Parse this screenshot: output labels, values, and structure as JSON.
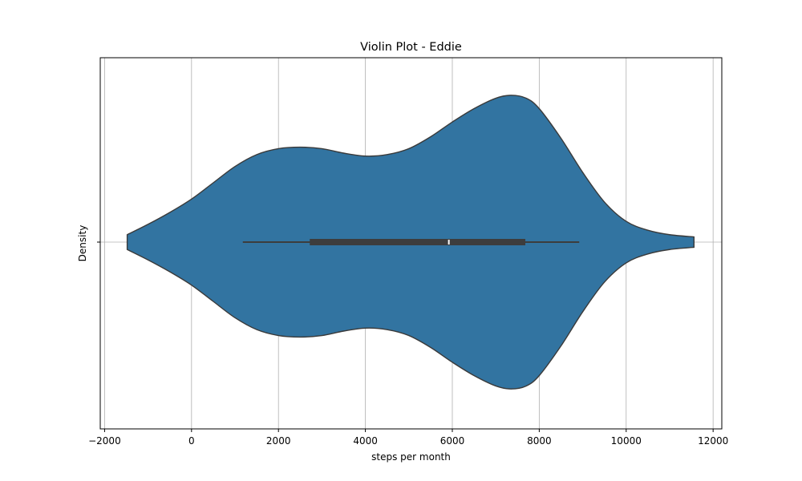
{
  "chart_data": {
    "type": "violin",
    "title": "Violin Plot - Eddie",
    "xlabel": "steps per month",
    "ylabel": "Density",
    "xlim": [
      -2100,
      12200
    ],
    "xticks": [
      -2000,
      0,
      2000,
      4000,
      6000,
      8000,
      10000,
      12000
    ],
    "xtick_labels": [
      "−2000",
      "0",
      "2000",
      "4000",
      "6000",
      "8000",
      "10000",
      "12000"
    ],
    "grid": true,
    "color": "#3274a1",
    "edge_color": "#3a3a3a",
    "box_color": "#3d3d3d",
    "density_profile": {
      "x": [
        -1480,
        -1000,
        -500,
        0,
        500,
        1000,
        1500,
        2000,
        2500,
        3000,
        3500,
        4000,
        4500,
        5000,
        5500,
        6000,
        6500,
        7000,
        7350,
        7700,
        8000,
        8500,
        9000,
        9500,
        10000,
        10500,
        11000,
        11560
      ],
      "density": [
        0.05,
        0.12,
        0.2,
        0.29,
        0.4,
        0.51,
        0.59,
        0.63,
        0.64,
        0.63,
        0.6,
        0.58,
        0.59,
        0.63,
        0.71,
        0.81,
        0.9,
        0.97,
        0.99,
        0.97,
        0.9,
        0.7,
        0.47,
        0.27,
        0.14,
        0.08,
        0.05,
        0.035
      ]
    },
    "box": {
      "whisker_low": 1180,
      "q1": 2720,
      "median": 5920,
      "q3": 7680,
      "whisker_high": 8920
    }
  }
}
